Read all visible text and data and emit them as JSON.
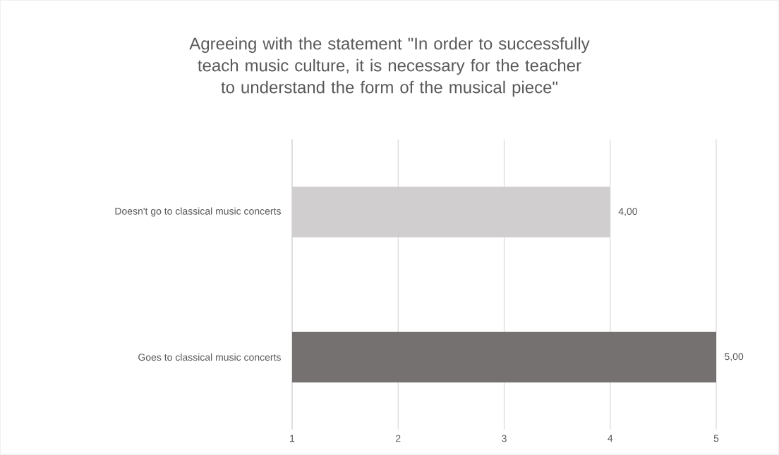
{
  "chart_data": {
    "type": "bar",
    "orientation": "horizontal",
    "title": "Agreeing with the statement \"In order to successfully teach music culture, it is necessary for the teacher to understand the form of the musical piece\"",
    "categories": [
      "Doesn't go to classical music concerts",
      "Goes to classical music concerts"
    ],
    "values": [
      4,
      5
    ],
    "colors": [
      "#d0cecf",
      "#767171"
    ],
    "value_labels": [
      "4,00",
      "5,00"
    ],
    "xlim": [
      1,
      5
    ],
    "xticks": [
      1,
      2,
      3,
      4,
      5
    ],
    "grid": "x"
  }
}
